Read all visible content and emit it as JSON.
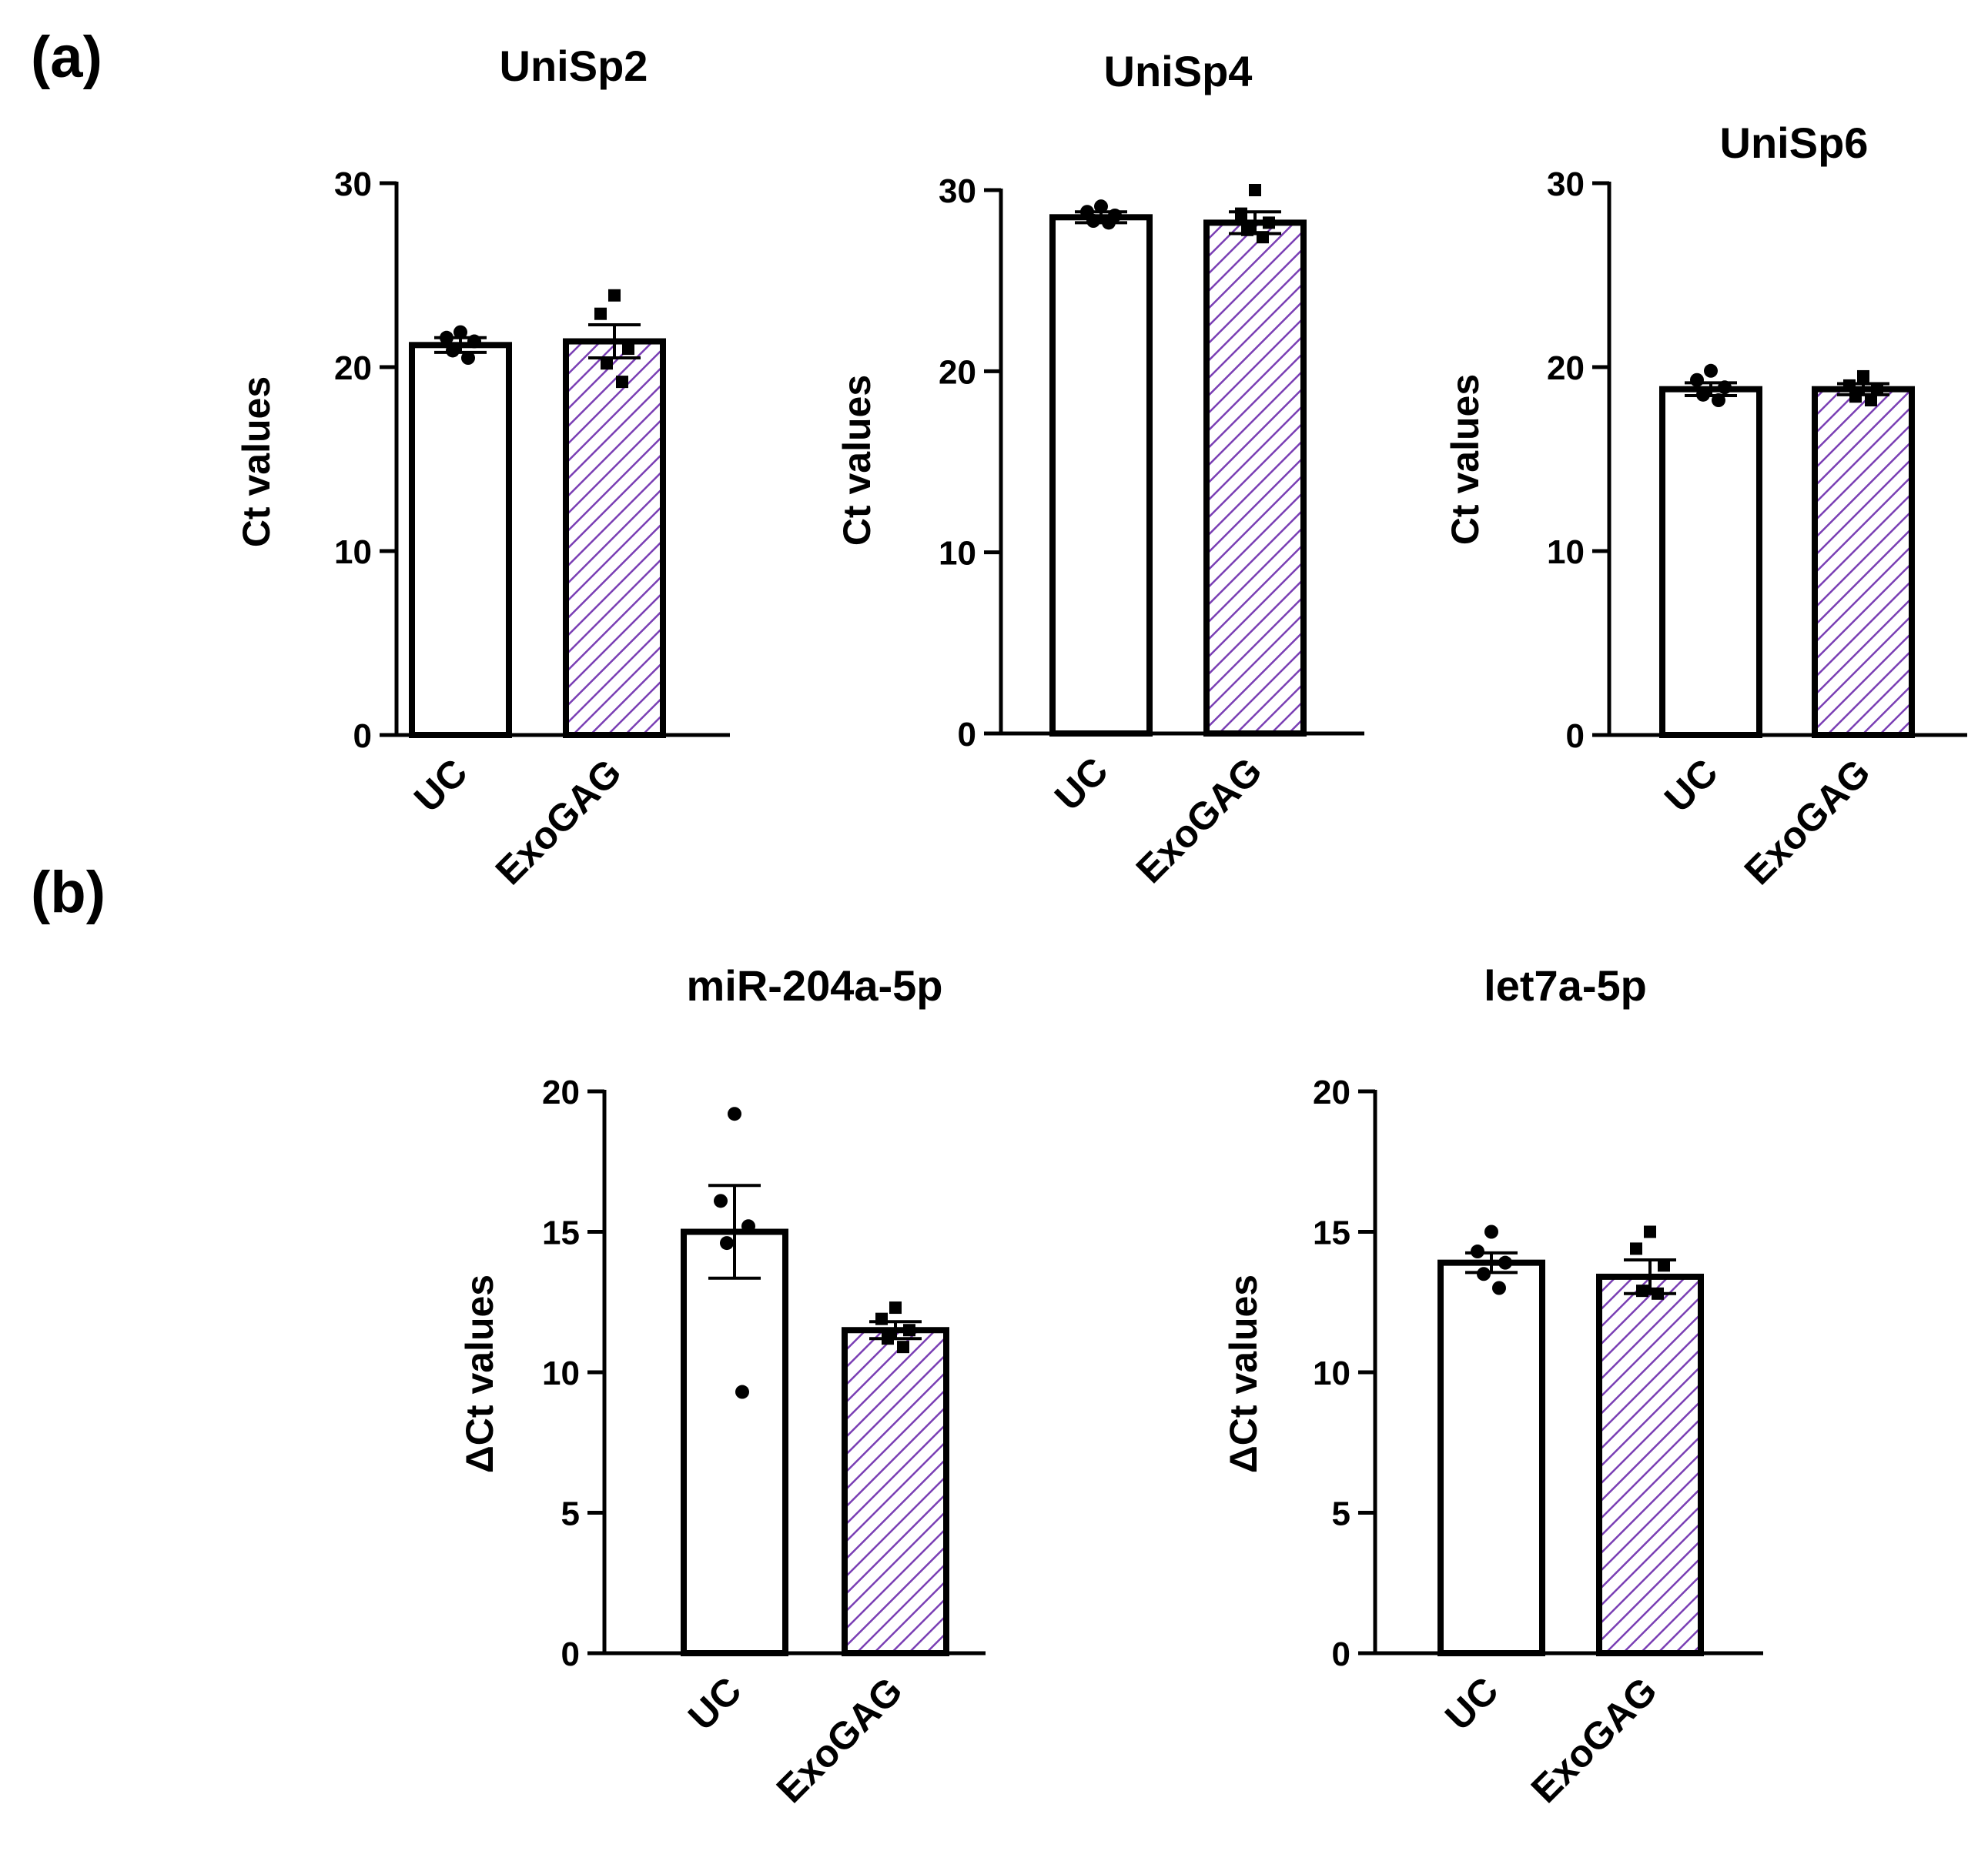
{
  "figure": {
    "panels": [
      {
        "label": "(a)"
      },
      {
        "label": "(b)"
      }
    ]
  },
  "colors": {
    "axis": "#000000",
    "bar_outline": "#000000",
    "uc_fill": "#ffffff",
    "exogag_hatch": "#7a3fb4"
  },
  "chart_data": [
    {
      "type": "bar",
      "title": "UniSp2",
      "ylabel": "Ct values",
      "xlabel": "",
      "ylim": [
        0,
        30
      ],
      "yticks": [
        0,
        10,
        20,
        30
      ],
      "categories": [
        "UC",
        "ExoGAG"
      ],
      "values": [
        21.2,
        21.4
      ],
      "errors": [
        0.4,
        0.9
      ],
      "points": [
        [
          21.9,
          21.6,
          21.4,
          20.9,
          20.5
        ],
        [
          23.9,
          22.9,
          21.0,
          20.2,
          19.2
        ]
      ],
      "markers": [
        "circle",
        "square"
      ]
    },
    {
      "type": "bar",
      "title": "UniSp4",
      "ylabel": "Ct values",
      "xlabel": "",
      "ylim": [
        0,
        30
      ],
      "yticks": [
        0,
        10,
        20,
        30
      ],
      "categories": [
        "UC",
        "ExoGAG"
      ],
      "values": [
        28.5,
        28.2
      ],
      "errors": [
        0.3,
        0.6
      ],
      "points": [
        [
          29.1,
          28.8,
          28.6,
          28.3,
          28.2
        ],
        [
          30.0,
          28.7,
          28.2,
          27.8,
          27.4
        ]
      ],
      "markers": [
        "circle",
        "square"
      ]
    },
    {
      "type": "bar",
      "title": "UniSp6",
      "ylabel": "Ct values",
      "xlabel": "",
      "ylim": [
        0,
        30
      ],
      "yticks": [
        0,
        10,
        20,
        30
      ],
      "categories": [
        "UC",
        "ExoGAG"
      ],
      "values": [
        18.8,
        18.8
      ],
      "errors": [
        0.35,
        0.3
      ],
      "points": [
        [
          19.8,
          19.3,
          18.9,
          18.5,
          18.2
        ],
        [
          19.5,
          19.0,
          18.8,
          18.4,
          18.2
        ]
      ],
      "markers": [
        "circle",
        "square"
      ]
    },
    {
      "type": "bar",
      "title": "miR-204a-5p",
      "ylabel": "ΔCt values",
      "xlabel": "",
      "ylim": [
        0,
        20
      ],
      "yticks": [
        0,
        5,
        10,
        15,
        20
      ],
      "categories": [
        "UC",
        "ExoGAG"
      ],
      "values": [
        15.0,
        11.5
      ],
      "errors": [
        1.65,
        0.3
      ],
      "points": [
        [
          19.2,
          16.1,
          15.2,
          14.6,
          9.3
        ],
        [
          12.3,
          11.9,
          11.5,
          11.2,
          10.9
        ]
      ],
      "markers": [
        "circle",
        "square"
      ]
    },
    {
      "type": "bar",
      "title": "let7a-5p",
      "ylabel": "ΔCt values",
      "xlabel": "",
      "ylim": [
        0,
        20
      ],
      "yticks": [
        0,
        5,
        10,
        15,
        20
      ],
      "categories": [
        "UC",
        "ExoGAG"
      ],
      "values": [
        13.9,
        13.4
      ],
      "errors": [
        0.35,
        0.6
      ],
      "points": [
        [
          15.0,
          14.3,
          13.9,
          13.5,
          13.0
        ],
        [
          15.0,
          14.4,
          13.8,
          12.9,
          12.8
        ]
      ],
      "markers": [
        "circle",
        "square"
      ]
    }
  ]
}
